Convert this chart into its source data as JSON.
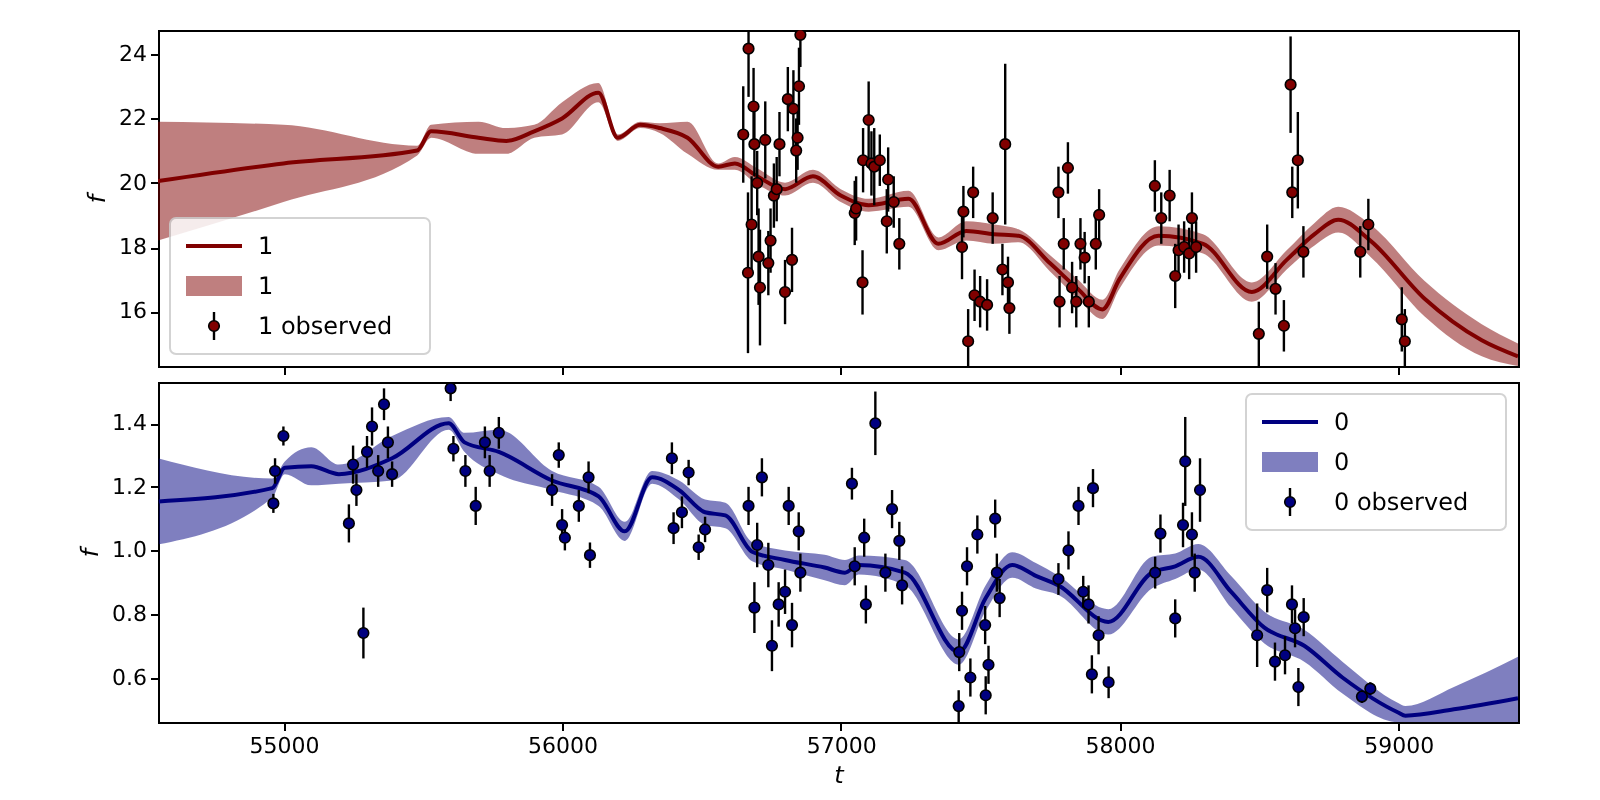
{
  "chart_data": [
    {
      "type": "line",
      "ylabel": "f",
      "xlim": [
        54550,
        59430
      ],
      "ylim": [
        14.3,
        24.75
      ],
      "xticks": [
        55000,
        56000,
        57000,
        58000,
        59000
      ],
      "yticks": [
        16,
        18,
        20,
        22,
        24
      ],
      "tick_labels": "y",
      "legend": "bottom left",
      "grid": false,
      "series": [
        {
          "name": "1",
          "color": "#800000",
          "x": [
            54550,
            55000,
            55480,
            55530,
            55700,
            55800,
            55900,
            56000,
            56130,
            56200,
            56280,
            56350,
            56450,
            56560,
            56620,
            56700,
            56800,
            56900,
            57000,
            57100,
            57243,
            57350,
            57450,
            57550,
            57638,
            57750,
            57850,
            57939,
            58000,
            58140,
            58300,
            58475,
            58600,
            58700,
            58785,
            58900,
            59094,
            59300,
            59430
          ],
          "values": [
            20.05,
            20.6,
            21.0,
            21.6,
            21.4,
            21.3,
            21.6,
            22.0,
            22.8,
            21.4,
            21.8,
            21.7,
            21.4,
            20.5,
            20.6,
            20.2,
            19.8,
            20.2,
            19.6,
            19.3,
            19.5,
            18.1,
            18.5,
            18.4,
            18.35,
            17.5,
            16.7,
            16.06,
            17.0,
            18.35,
            18.1,
            16.6,
            17.6,
            18.4,
            18.85,
            18.2,
            16.4,
            15.1,
            14.6
          ],
          "lower": [
            18.2,
            19.4,
            20.85,
            21.4,
            20.9,
            20.9,
            21.4,
            21.5,
            22.5,
            21.3,
            21.7,
            21.55,
            20.9,
            20.4,
            20.4,
            19.95,
            19.6,
            20.0,
            19.4,
            19.1,
            19.25,
            17.9,
            18.2,
            18.1,
            18.15,
            17.25,
            16.4,
            15.76,
            16.7,
            18.05,
            17.8,
            16.3,
            17.3,
            18.05,
            18.45,
            17.7,
            15.85,
            14.6,
            14.3
          ],
          "upper": [
            21.9,
            21.8,
            21.15,
            21.8,
            21.9,
            21.7,
            21.8,
            22.5,
            23.1,
            21.5,
            21.9,
            21.85,
            21.9,
            20.6,
            20.8,
            20.45,
            20.0,
            20.4,
            19.8,
            19.5,
            19.75,
            18.3,
            18.8,
            18.7,
            18.55,
            17.75,
            17.0,
            16.36,
            17.3,
            18.65,
            18.4,
            16.9,
            17.9,
            18.75,
            19.25,
            18.7,
            16.95,
            15.6,
            15.0
          ]
        },
        {
          "name": "1 observed",
          "type": "scatter",
          "marker": "circle",
          "color": "#800000",
          "x": [
            56650,
            56667,
            56669,
            56680,
            56687,
            56690,
            56700,
            56705,
            56710,
            56729,
            56740,
            56748,
            56760,
            56770,
            56780,
            56800,
            56810,
            56825,
            56830,
            56840,
            56845,
            56850,
            56855,
            57050,
            57055,
            57078,
            57080,
            57100,
            57110,
            57120,
            57140,
            57165,
            57170,
            57190,
            57210,
            57435,
            57440,
            57457,
            57475,
            57480,
            57500,
            57525,
            57545,
            57580,
            57590,
            57600,
            57605,
            57781,
            57785,
            57800,
            57815,
            57830,
            57845,
            57860,
            57875,
            57890,
            57915,
            57927,
            58127,
            58150,
            58180,
            58200,
            58212,
            58232,
            58250,
            58260,
            58275,
            58500,
            58530,
            58560,
            58590,
            58614,
            58620,
            58640,
            58660,
            58864,
            58893,
            59013,
            59024
          ],
          "values": [
            21.5,
            17.2,
            24.17,
            18.7,
            22.37,
            21.2,
            19.99,
            17.7,
            16.74,
            21.33,
            17.5,
            18.2,
            19.6,
            19.8,
            21.2,
            16.6,
            22.6,
            17.6,
            22.3,
            21.0,
            21.4,
            23.0,
            24.6,
            19.06,
            19.2,
            16.9,
            20.7,
            21.95,
            20.6,
            20.5,
            20.7,
            18.8,
            20.1,
            19.4,
            18.1,
            18.0,
            19.1,
            15.07,
            19.7,
            16.5,
            16.3,
            16.2,
            18.9,
            17.3,
            21.2,
            16.9,
            16.1,
            19.7,
            16.3,
            18.1,
            20.46,
            16.74,
            16.3,
            18.1,
            17.67,
            16.3,
            18.1,
            19.0,
            19.9,
            18.9,
            19.6,
            17.1,
            17.9,
            18.0,
            17.8,
            18.9,
            18.0,
            15.3,
            17.7,
            16.7,
            15.55,
            23.05,
            19.7,
            20.7,
            17.85,
            17.85,
            18.7,
            15.75,
            15.07
          ],
          "errors": [
            1.5,
            2.5,
            1.5,
            1.5,
            1.2,
            1.0,
            1.0,
            1.5,
            1.8,
            1.2,
            1.0,
            1.0,
            1.0,
            1.0,
            1.0,
            1.0,
            1.0,
            1.0,
            1.2,
            1.0,
            1.0,
            1.2,
            1.0,
            1.0,
            1.0,
            1.0,
            1.0,
            1.2,
            1.0,
            1.2,
            0.8,
            1.0,
            1.0,
            0.8,
            0.8,
            1.0,
            0.8,
            1.0,
            0.8,
            0.8,
            0.8,
            0.8,
            0.8,
            0.8,
            2.5,
            0.8,
            0.8,
            0.8,
            0.8,
            0.8,
            0.8,
            0.8,
            0.8,
            0.8,
            0.8,
            0.8,
            0.8,
            0.8,
            0.8,
            0.8,
            0.8,
            1.0,
            0.8,
            0.8,
            0.8,
            0.8,
            0.8,
            1.0,
            1.0,
            0.8,
            0.8,
            1.5,
            0.8,
            1.5,
            0.8,
            0.8,
            0.8,
            1.0,
            1.0
          ]
        }
      ]
    },
    {
      "type": "line",
      "xlabel": "t",
      "ylabel": "f",
      "xlim": [
        54550,
        59430
      ],
      "ylim": [
        0.46,
        1.53
      ],
      "xticks": [
        55000,
        56000,
        57000,
        58000,
        59000
      ],
      "yticks": [
        0.6,
        0.8,
        {
          "value": 1.0,
          "label": "1.0"
        },
        1.2,
        1.4
      ],
      "legend": "top right",
      "grid": false,
      "series": [
        {
          "name": "0",
          "color": "#000080",
          "x": [
            54553,
            54960,
            55005,
            55100,
            55199,
            55390,
            55593,
            55650,
            55773,
            55964,
            56131,
            56225,
            56323,
            56420,
            56513,
            56586,
            56682,
            56800,
            56942,
            57015,
            57064,
            57230,
            57424,
            57520,
            57615,
            57700,
            57781,
            57960,
            58116,
            58200,
            58283,
            58400,
            58520,
            58663,
            58800,
            59000,
            59026,
            59200,
            59430
          ],
          "values": [
            1.154,
            1.196,
            1.26,
            1.265,
            1.24,
            1.29,
            1.4,
            1.34,
            1.31,
            1.22,
            1.17,
            1.06,
            1.23,
            1.19,
            1.12,
            1.11,
            0.996,
            0.97,
            0.946,
            0.93,
            0.954,
            0.93,
            0.68,
            0.85,
            0.954,
            0.92,
            0.89,
            0.775,
            0.93,
            0.95,
            0.98,
            0.87,
            0.757,
            0.7,
            0.6,
            0.49,
            0.48,
            0.5,
            0.535
          ],
          "lower": [
            1.019,
            1.166,
            1.24,
            1.205,
            1.21,
            1.22,
            1.38,
            1.31,
            1.24,
            1.19,
            1.14,
            1.03,
            1.21,
            1.16,
            1.08,
            1.07,
            0.966,
            0.94,
            0.906,
            0.89,
            0.924,
            0.89,
            0.64,
            0.81,
            0.914,
            0.88,
            0.86,
            0.735,
            0.88,
            0.91,
            0.94,
            0.82,
            0.707,
            0.65,
            0.55,
            0.46,
            0.46,
            0.46,
            0.46
          ],
          "upper": [
            1.289,
            1.226,
            1.28,
            1.325,
            1.27,
            1.36,
            1.42,
            1.37,
            1.38,
            1.25,
            1.2,
            1.09,
            1.25,
            1.22,
            1.16,
            1.15,
            1.026,
            1.0,
            0.986,
            0.97,
            0.984,
            0.97,
            0.72,
            0.89,
            0.994,
            0.96,
            0.92,
            0.815,
            0.98,
            0.99,
            1.02,
            0.92,
            0.807,
            0.75,
            0.65,
            0.52,
            0.51,
            0.57,
            0.665
          ]
        },
        {
          "name": "0 observed",
          "type": "scatter",
          "marker": "circle",
          "color": "#000080",
          "x": [
            54964,
            54970,
            55000,
            55235,
            55250,
            55262,
            55287,
            55300,
            55318,
            55340,
            55361,
            55375,
            55390,
            55600,
            55610,
            55653,
            55690,
            55723,
            55740,
            55773,
            55964,
            55988,
            56000,
            56010,
            56060,
            56095,
            56100,
            56394,
            56400,
            56430,
            56454,
            56490,
            56513,
            56669,
            56690,
            56700,
            56717,
            56740,
            56753,
            56777,
            56800,
            56813,
            56825,
            56849,
            56855,
            57040,
            57050,
            57084,
            57090,
            57124,
            57160,
            57184,
            57210,
            57220,
            57423,
            57425,
            57435,
            57453,
            57465,
            57490,
            57518,
            57520,
            57530,
            57554,
            57560,
            57570,
            57781,
            57817,
            57853,
            57870,
            57889,
            57901,
            57905,
            57925,
            57961,
            58128,
            58147,
            58200,
            58228,
            58236,
            58260,
            58270,
            58289,
            58494,
            58530,
            58558,
            58594,
            58619,
            58630,
            58642,
            58661,
            58870,
            58900
          ],
          "values": [
            1.148,
            1.25,
            1.36,
            1.085,
            1.27,
            1.19,
            0.74,
            1.31,
            1.39,
            1.25,
            1.46,
            1.34,
            1.24,
            1.51,
            1.32,
            1.25,
            1.14,
            1.34,
            1.25,
            1.37,
            1.19,
            1.3,
            1.08,
            1.04,
            1.14,
            1.23,
            0.985,
            1.29,
            1.07,
            1.12,
            1.245,
            1.01,
            1.066,
            1.14,
            0.82,
            1.017,
            1.23,
            0.954,
            0.7,
            0.83,
            0.87,
            1.14,
            0.765,
            1.06,
            0.93,
            1.21,
            0.95,
            1.04,
            0.83,
            1.4,
            0.93,
            1.13,
            1.03,
            0.89,
            0.51,
            0.68,
            0.81,
            0.95,
            0.6,
            1.05,
            0.765,
            0.544,
            0.64,
            1.1,
            0.93,
            0.85,
            0.91,
            1.0,
            1.14,
            0.87,
            0.83,
            0.61,
            1.196,
            0.733,
            0.585,
            0.93,
            1.053,
            0.786,
            1.08,
            1.28,
            1.05,
            0.93,
            1.19,
            0.733,
            0.875,
            0.65,
            0.67,
            0.83,
            0.755,
            0.57,
            0.79,
            0.54,
            0.565
          ],
          "errors": [
            0.03,
            0.04,
            0.03,
            0.06,
            0.06,
            0.05,
            0.08,
            0.05,
            0.06,
            0.05,
            0.05,
            0.05,
            0.04,
            0.04,
            0.04,
            0.05,
            0.06,
            0.05,
            0.05,
            0.05,
            0.05,
            0.04,
            0.05,
            0.04,
            0.05,
            0.05,
            0.04,
            0.05,
            0.05,
            0.05,
            0.04,
            0.04,
            0.04,
            0.06,
            0.08,
            0.07,
            0.06,
            0.07,
            0.08,
            0.07,
            0.07,
            0.06,
            0.07,
            0.06,
            0.06,
            0.05,
            0.06,
            0.06,
            0.06,
            0.1,
            0.06,
            0.06,
            0.06,
            0.06,
            0.05,
            0.06,
            0.06,
            0.06,
            0.06,
            0.06,
            0.06,
            0.06,
            0.06,
            0.06,
            0.06,
            0.06,
            0.05,
            0.06,
            0.06,
            0.05,
            0.06,
            0.06,
            0.06,
            0.06,
            0.05,
            0.05,
            0.06,
            0.06,
            0.07,
            0.14,
            0.07,
            0.06,
            0.1,
            0.1,
            0.07,
            0.06,
            0.06,
            0.06,
            0.06,
            0.06,
            0.06,
            0.02,
            0.02
          ]
        }
      ]
    }
  ]
}
